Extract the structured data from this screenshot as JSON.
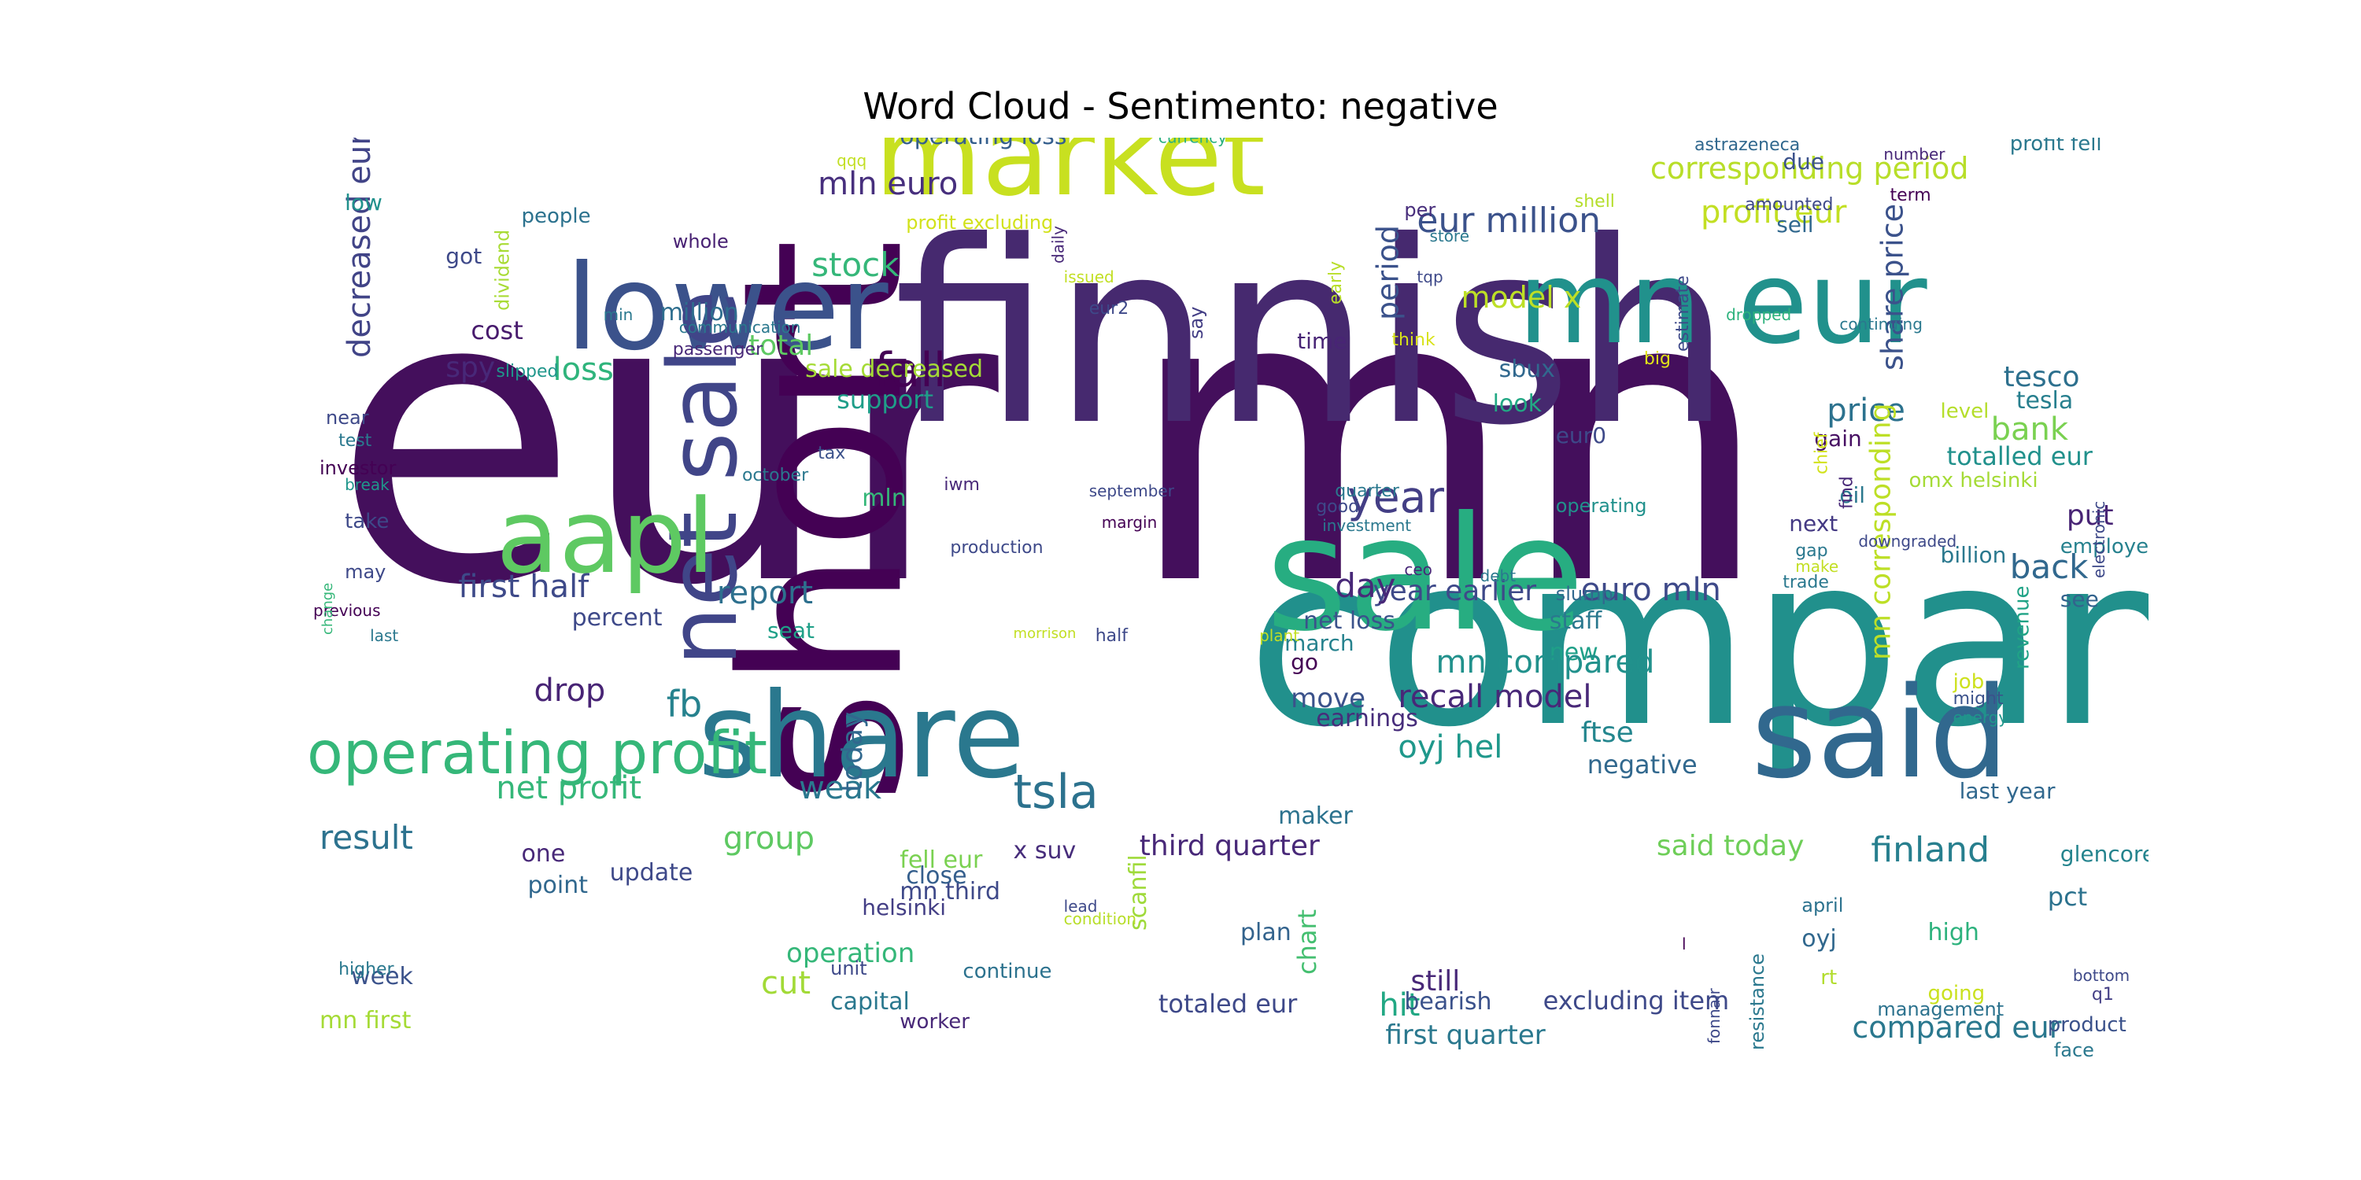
{
  "chart_title": "Word Cloud - Sentimento: negative",
  "chart_data": {
    "type": "word_cloud",
    "title": "Word Cloud - Sentimento: negative",
    "words": [
      {
        "text": "eur mn",
        "color": "#440f5c"
      },
      {
        "text": "finnish",
        "color": "#46296f"
      },
      {
        "text": "company",
        "color": "#21908c"
      },
      {
        "text": "short",
        "color": "#440154"
      },
      {
        "text": "market",
        "color": "#c8e020"
      },
      {
        "text": "sale",
        "color": "#27ad81"
      },
      {
        "text": "lower",
        "color": "#3b528b"
      },
      {
        "text": "mn eur",
        "color": "#21918c"
      },
      {
        "text": "share",
        "color": "#2a788e"
      },
      {
        "text": "said",
        "color": "#31688e"
      },
      {
        "text": "net sale",
        "color": "#404588"
      },
      {
        "text": "aapl",
        "color": "#5ec962"
      },
      {
        "text": "operating profit",
        "color": "#35b779"
      },
      {
        "text": "fall",
        "color": "#440154"
      },
      {
        "text": "tsla",
        "color": "#2c728e"
      },
      {
        "text": "year",
        "color": "#433e85"
      },
      {
        "text": "stock",
        "color": "#35b779"
      },
      {
        "text": "mln euro",
        "color": "#472f7d"
      },
      {
        "text": "operating loss",
        "color": "#355f8d"
      },
      {
        "text": "profit excluding",
        "color": "#d2e21b"
      },
      {
        "text": "currency",
        "color": "#2ab07f"
      },
      {
        "text": "eur million",
        "color": "#3b528b"
      },
      {
        "text": "profit eur",
        "color": "#c2df23"
      },
      {
        "text": "corresponding period",
        "color": "#b8de29"
      },
      {
        "text": "model x",
        "color": "#bddf26"
      },
      {
        "text": "decreased eur",
        "color": "#414487"
      },
      {
        "text": "low",
        "color": "#21918c"
      },
      {
        "text": "people",
        "color": "#2c728e"
      },
      {
        "text": "got",
        "color": "#3e4989"
      },
      {
        "text": "dividend",
        "color": "#a8db34"
      },
      {
        "text": "whole",
        "color": "#482173"
      },
      {
        "text": "million",
        "color": "#2e6e8e"
      },
      {
        "text": "cost",
        "color": "#481b6d"
      },
      {
        "text": "total",
        "color": "#5ec962"
      },
      {
        "text": "spy",
        "color": "#482878"
      },
      {
        "text": "loss",
        "color": "#2fb47c"
      },
      {
        "text": "support",
        "color": "#1f9e89"
      },
      {
        "text": "period",
        "color": "#3b528b"
      },
      {
        "text": "sbux",
        "color": "#31688e"
      },
      {
        "text": "look",
        "color": "#22a884"
      },
      {
        "text": "eur0",
        "color": "#3e4989"
      },
      {
        "text": "price",
        "color": "#2c728e"
      },
      {
        "text": "share price",
        "color": "#3b528b"
      },
      {
        "text": "tesco",
        "color": "#2d708e"
      },
      {
        "text": "tesla",
        "color": "#277f8e"
      },
      {
        "text": "level",
        "color": "#b5de2b"
      },
      {
        "text": "bank",
        "color": "#7ad151"
      },
      {
        "text": "gain",
        "color": "#471063"
      },
      {
        "text": "totalled eur",
        "color": "#21918c"
      },
      {
        "text": "omx helsinki",
        "color": "#a5db36"
      },
      {
        "text": "oil",
        "color": "#2a788e"
      },
      {
        "text": "put",
        "color": "#482475"
      },
      {
        "text": "next",
        "color": "#443983"
      },
      {
        "text": "employee",
        "color": "#26818e"
      },
      {
        "text": "billion",
        "color": "#2a788e"
      },
      {
        "text": "back",
        "color": "#31688e"
      },
      {
        "text": "see",
        "color": "#33638d"
      },
      {
        "text": "revenue",
        "color": "#20a386"
      },
      {
        "text": "first half",
        "color": "#3e4a89"
      },
      {
        "text": "percent",
        "color": "#3e4989"
      },
      {
        "text": "report",
        "color": "#2d708e"
      },
      {
        "text": "seat",
        "color": "#1fa088"
      },
      {
        "text": "net loss",
        "color": "#3b528b"
      },
      {
        "text": "march",
        "color": "#26828e"
      },
      {
        "text": "go",
        "color": "#440154"
      },
      {
        "text": "staff",
        "color": "#2a788e"
      },
      {
        "text": "new",
        "color": "#1fa088"
      },
      {
        "text": "mn compared",
        "color": "#21918c"
      },
      {
        "text": "euro mln",
        "color": "#3e4989"
      },
      {
        "text": "year earlier",
        "color": "#3e4989"
      },
      {
        "text": "day",
        "color": "#482878"
      },
      {
        "text": "mn corresponding",
        "color": "#bddf26"
      },
      {
        "text": "drop",
        "color": "#482475"
      },
      {
        "text": "fb",
        "color": "#26828e"
      },
      {
        "text": "recall model",
        "color": "#482878"
      },
      {
        "text": "move",
        "color": "#3b528b"
      },
      {
        "text": "earnings",
        "color": "#472d7b"
      },
      {
        "text": "oyj hel",
        "color": "#1f988b"
      },
      {
        "text": "ftse",
        "color": "#24868e"
      },
      {
        "text": "negative",
        "color": "#31688e"
      },
      {
        "text": "net profit",
        "color": "#35b779"
      },
      {
        "text": "weak",
        "color": "#2a788e"
      },
      {
        "text": "today",
        "color": "#31688e"
      },
      {
        "text": "maker",
        "color": "#2c728e"
      },
      {
        "text": "result",
        "color": "#2c728e"
      },
      {
        "text": "group",
        "color": "#5ec962"
      },
      {
        "text": "third quarter",
        "color": "#482878"
      },
      {
        "text": "said today",
        "color": "#6ece58"
      },
      {
        "text": "finland",
        "color": "#277f8e"
      },
      {
        "text": "glencore",
        "color": "#25848e"
      },
      {
        "text": "pct",
        "color": "#2c728e"
      },
      {
        "text": "mn third",
        "color": "#3e4989"
      },
      {
        "text": "close",
        "color": "#355f8d"
      },
      {
        "text": "fell eur",
        "color": "#7ad151"
      },
      {
        "text": "point",
        "color": "#31688e"
      },
      {
        "text": "one",
        "color": "#482878"
      },
      {
        "text": "update",
        "color": "#3e4989"
      },
      {
        "text": "helsinki",
        "color": "#433e85"
      },
      {
        "text": "x suv",
        "color": "#472d7b"
      },
      {
        "text": "chart",
        "color": "#44bf70"
      },
      {
        "text": "plan",
        "color": "#33638d"
      },
      {
        "text": "scanfil",
        "color": "#9fda3a"
      },
      {
        "text": "oyj",
        "color": "#31688e"
      },
      {
        "text": "high",
        "color": "#2db27d"
      },
      {
        "text": "april",
        "color": "#2c728e"
      },
      {
        "text": "operation",
        "color": "#35b779"
      },
      {
        "text": "cut",
        "color": "#a2da37"
      },
      {
        "text": "capital",
        "color": "#2a788e"
      },
      {
        "text": "still",
        "color": "#482878"
      },
      {
        "text": "hit",
        "color": "#22a884"
      },
      {
        "text": "continue",
        "color": "#2c728e"
      },
      {
        "text": "totaled eur",
        "color": "#3e4989"
      },
      {
        "text": "bearish",
        "color": "#3b528b"
      },
      {
        "text": "excluding item",
        "color": "#3e4989"
      },
      {
        "text": "first quarter",
        "color": "#2a788e"
      },
      {
        "text": "compared eur",
        "color": "#2a788e"
      },
      {
        "text": "management",
        "color": "#2c728e"
      },
      {
        "text": "product",
        "color": "#3b528b"
      },
      {
        "text": "week",
        "color": "#3b528b"
      },
      {
        "text": "mn first",
        "color": "#a5db36"
      },
      {
        "text": "worker",
        "color": "#482878"
      },
      {
        "text": "unit",
        "color": "#3e4989"
      },
      {
        "text": "going",
        "color": "#cae11f"
      },
      {
        "text": "resistance",
        "color": "#2a788e"
      },
      {
        "text": "rt",
        "color": "#b2dd2d"
      },
      {
        "text": "face",
        "color": "#2a788e"
      },
      {
        "text": "bottom",
        "color": "#3e4989"
      },
      {
        "text": "q1",
        "color": "#433e85"
      },
      {
        "text": "last year",
        "color": "#31688e"
      },
      {
        "text": "energy",
        "color": "#1f968b"
      },
      {
        "text": "might",
        "color": "#3b528b"
      },
      {
        "text": "job",
        "color": "#cde11d"
      },
      {
        "text": "electronic",
        "color": "#3e4989"
      },
      {
        "text": "astrazeneca",
        "color": "#31688e"
      },
      {
        "text": "due",
        "color": "#3b528b"
      },
      {
        "text": "amounted",
        "color": "#3e4989"
      },
      {
        "text": "sell",
        "color": "#31688e"
      },
      {
        "text": "number",
        "color": "#482878"
      },
      {
        "text": "profit fell",
        "color": "#2a788e"
      },
      {
        "text": "term",
        "color": "#440154"
      },
      {
        "text": "shell",
        "color": "#b5de2b"
      },
      {
        "text": "per",
        "color": "#472d7b"
      },
      {
        "text": "store",
        "color": "#2a788e"
      },
      {
        "text": "tqp",
        "color": "#3e4989"
      },
      {
        "text": "daily",
        "color": "#482878"
      },
      {
        "text": "issued",
        "color": "#c2df23"
      },
      {
        "text": "early",
        "color": "#b8de29"
      },
      {
        "text": "say",
        "color": "#433e85"
      },
      {
        "text": "time",
        "color": "#482475"
      },
      {
        "text": "estimate",
        "color": "#3e4989"
      },
      {
        "text": "dropped",
        "color": "#2db27d"
      },
      {
        "text": "continuing",
        "color": "#2a788e"
      },
      {
        "text": "chief",
        "color": "#d2e21b"
      },
      {
        "text": "find",
        "color": "#482878"
      },
      {
        "text": "downgraded",
        "color": "#3e4989"
      },
      {
        "text": "think",
        "color": "#d8e219"
      },
      {
        "text": "big",
        "color": "#e2e418"
      },
      {
        "text": "qqq",
        "color": "#c2df23"
      },
      {
        "text": "eur2",
        "color": "#3e4989"
      },
      {
        "text": "communication",
        "color": "#2a788e"
      },
      {
        "text": "min",
        "color": "#2a788e"
      },
      {
        "text": "passenger",
        "color": "#482878"
      },
      {
        "text": "slipped",
        "color": "#1f968b"
      },
      {
        "text": "sale decreased",
        "color": "#a5db36"
      },
      {
        "text": "near",
        "color": "#3e4989"
      },
      {
        "text": "test",
        "color": "#2a788e"
      },
      {
        "text": "tax",
        "color": "#3b528b"
      },
      {
        "text": "investor",
        "color": "#440154"
      },
      {
        "text": "break",
        "color": "#1f968b"
      },
      {
        "text": "october",
        "color": "#2a788e"
      },
      {
        "text": "iwm",
        "color": "#482878"
      },
      {
        "text": "mln",
        "color": "#35b779"
      },
      {
        "text": "september",
        "color": "#3e4989"
      },
      {
        "text": "quarter",
        "color": "#2a788e"
      },
      {
        "text": "good",
        "color": "#3e4989"
      },
      {
        "text": "margin",
        "color": "#440154"
      },
      {
        "text": "investment",
        "color": "#2a788e"
      },
      {
        "text": "operating",
        "color": "#21918c"
      },
      {
        "text": "gap",
        "color": "#2a788e"
      },
      {
        "text": "make",
        "color": "#c2df23"
      },
      {
        "text": "trade",
        "color": "#2a788e"
      },
      {
        "text": "ceo",
        "color": "#482878"
      },
      {
        "text": "debt",
        "color": "#2a788e"
      },
      {
        "text": "slump",
        "color": "#31688e"
      },
      {
        "text": "take",
        "color": "#3e4989"
      },
      {
        "text": "may",
        "color": "#3e4989"
      },
      {
        "text": "previous",
        "color": "#440154"
      },
      {
        "text": "change",
        "color": "#35b779"
      },
      {
        "text": "last",
        "color": "#2a788e"
      },
      {
        "text": "morrison",
        "color": "#c2df23"
      },
      {
        "text": "half",
        "color": "#3e4989"
      },
      {
        "text": "plant",
        "color": "#c2df23"
      },
      {
        "text": "production",
        "color": "#3e4989"
      },
      {
        "text": "higher",
        "color": "#2a788e"
      },
      {
        "text": "lead",
        "color": "#3e4989"
      },
      {
        "text": "condition",
        "color": "#b8de29"
      },
      {
        "text": "l",
        "color": "#440154"
      },
      {
        "text": "fonnair",
        "color": "#3e4989"
      }
    ]
  }
}
